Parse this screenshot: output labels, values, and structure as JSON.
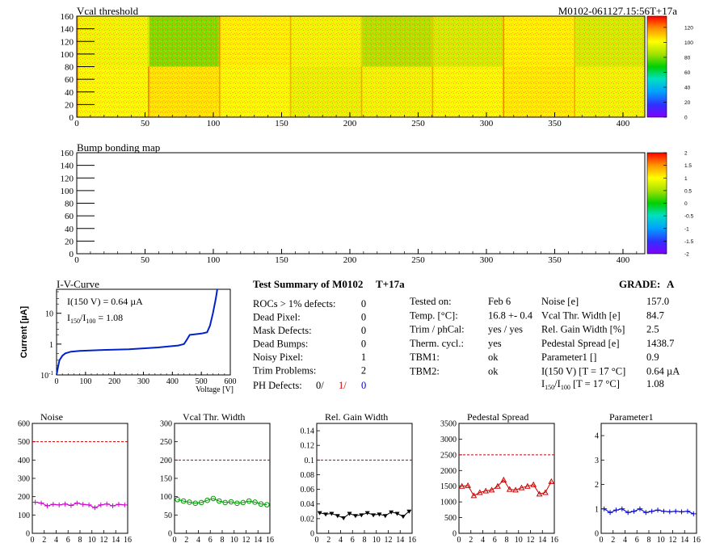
{
  "header": {
    "vcal_title": "Vcal threshold",
    "module_label": "M0102-061127.15:56T+17a",
    "bump_title": "Bump bonding map"
  },
  "heatmaps": [
    {
      "id": "vcal",
      "type": "heatmap",
      "x_ticks": [
        "0",
        "50",
        "100",
        "150",
        "200",
        "250",
        "300",
        "350",
        "400"
      ],
      "y_ticks": [
        "0",
        "20",
        "40",
        "60",
        "80",
        "100",
        "120",
        "140",
        "160"
      ],
      "xlim": [
        0,
        416
      ],
      "ylim": [
        0,
        160
      ],
      "color_scale_ticks": [
        "0",
        "20",
        "40",
        "60",
        "80",
        "100",
        "120"
      ],
      "zlim": [
        0,
        135
      ],
      "roc_mean_values_top": [
        98,
        80,
        103,
        98,
        86,
        92,
        103,
        92
      ],
      "roc_mean_values_bottom": [
        100,
        105,
        100,
        96,
        98,
        100,
        104,
        98
      ]
    },
    {
      "id": "bump",
      "type": "heatmap",
      "x_ticks": [
        "0",
        "50",
        "100",
        "150",
        "200",
        "250",
        "300",
        "350",
        "400"
      ],
      "y_ticks": [
        "0",
        "20",
        "40",
        "60",
        "80",
        "100",
        "120",
        "140",
        "160"
      ],
      "xlim": [
        0,
        416
      ],
      "ylim": [
        0,
        160
      ],
      "color_scale_ticks": [
        "-2",
        "-1.5",
        "-1",
        "-0.5",
        "0",
        "0.5",
        "1",
        "1.5",
        "2"
      ],
      "zlim": [
        -2,
        2
      ]
    }
  ],
  "iv_curve": {
    "title": "I-V-Curve",
    "ylabel": "Current [µA]",
    "xlabel": "Voltage [V]",
    "annotation_1": "I(150 V) = 0.64 µA",
    "annotation_2_pre": "I",
    "annotation_2_sub1": "150",
    "annotation_2_mid": "/I",
    "annotation_2_sub2": "100",
    "annotation_2_post": " =  1.08",
    "x_ticks": [
      "0",
      "100",
      "200",
      "300",
      "400",
      "500",
      "600"
    ],
    "y_ticks": [
      "10",
      "1",
      "10"
    ],
    "y_tick_exp": "-1",
    "xlim": [
      0,
      600
    ],
    "ylim_log": [
      0.1,
      60
    ],
    "chart_data": {
      "type": "line",
      "x": [
        0,
        5,
        10,
        20,
        30,
        50,
        80,
        150,
        250,
        350,
        420,
        440,
        450,
        460,
        480,
        500,
        520,
        530,
        540,
        550,
        555
      ],
      "y": [
        0.1,
        0.18,
        0.3,
        0.42,
        0.5,
        0.57,
        0.6,
        0.64,
        0.68,
        0.78,
        0.9,
        1.0,
        1.4,
        2.0,
        2.1,
        2.2,
        2.4,
        4.0,
        10.0,
        30.0,
        60.0
      ]
    }
  },
  "summary": {
    "title_left": "Test Summary of M0102",
    "title_right": "T+17a",
    "grade_label": "GRADE:",
    "grade_value": "A",
    "col1": [
      {
        "label": "ROCs > 1% defects:",
        "value": "0"
      },
      {
        "label": "Dead Pixel:",
        "value": "0"
      },
      {
        "label": "Mask Defects:",
        "value": "0"
      },
      {
        "label": "Dead Bumps:",
        "value": "0"
      },
      {
        "label": "Noisy Pixel:",
        "value": "1"
      },
      {
        "label": "Trim Problems:",
        "value": "2"
      }
    ],
    "ph_defects": {
      "label": "PH Defects:",
      "v1": "0/",
      "v2": "1/",
      "v3": "0"
    },
    "col2": [
      {
        "label": "Tested on:",
        "value": "Feb 6"
      },
      {
        "label": "Temp. [°C]:",
        "value": "16.8 +- 0.4"
      },
      {
        "label": "Trim / phCal:",
        "value": "yes / yes"
      },
      {
        "label": "Therm. cycl.:",
        "value": "yes"
      },
      {
        "label": "TBM1:",
        "value": "ok"
      },
      {
        "label": "TBM2:",
        "value": "ok"
      }
    ],
    "col3": [
      {
        "label": "Noise [e]",
        "value": "157.0"
      },
      {
        "label": "Vcal Thr. Width [e]",
        "value": "84.7"
      },
      {
        "label": "Rel. Gain Width [%]",
        "value": "2.5"
      },
      {
        "label": "Pedestal Spread [e]",
        "value": "1438.7"
      },
      {
        "label": "Parameter1 []",
        "value": "0.9"
      },
      {
        "label": "I(150 V) [T = 17 °C]",
        "value": "0.64 µA"
      }
    ],
    "ratio_row": {
      "pre": "I",
      "sub1": "150",
      "mid": "/I",
      "sub2": "100",
      "post": "  [T = 17 °C]",
      "value": "1.08"
    }
  },
  "chart_data": [
    {
      "type": "line",
      "title": "Noise",
      "color": "#cc00cc",
      "marker": "plus",
      "x": [
        0,
        1,
        2,
        3,
        4,
        5,
        6,
        7,
        8,
        9,
        10,
        11,
        12,
        13,
        14,
        15
      ],
      "values": [
        170,
        165,
        150,
        158,
        155,
        160,
        152,
        165,
        158,
        155,
        140,
        155,
        160,
        150,
        158,
        155
      ],
      "ylim": [
        0,
        600
      ],
      "limit": 500,
      "y_ticks": [
        "0",
        "100",
        "200",
        "300",
        "400",
        "500",
        "600"
      ],
      "x_ticks": [
        "0",
        "2",
        "4",
        "6",
        "8",
        "10",
        "12",
        "14",
        "16"
      ]
    },
    {
      "type": "line",
      "title": "Vcal Thr. Width",
      "color": "#009900",
      "marker": "circle",
      "x": [
        0,
        1,
        2,
        3,
        4,
        5,
        6,
        7,
        8,
        9,
        10,
        11,
        12,
        13,
        14,
        15
      ],
      "values": [
        92,
        88,
        85,
        82,
        84,
        90,
        95,
        88,
        84,
        86,
        82,
        84,
        88,
        85,
        80,
        78
      ],
      "ylim": [
        0,
        300
      ],
      "limit": 200,
      "y_ticks": [
        "0",
        "50",
        "100",
        "150",
        "200",
        "250",
        "300"
      ],
      "x_ticks": [
        "0",
        "2",
        "4",
        "6",
        "8",
        "10",
        "12",
        "14",
        "16"
      ]
    },
    {
      "type": "line",
      "title": "Rel. Gain Width",
      "color": "#000000",
      "marker": "triangle",
      "x": [
        0,
        1,
        2,
        3,
        4,
        5,
        6,
        7,
        8,
        9,
        10,
        11,
        12,
        13,
        14,
        15
      ],
      "values": [
        0.028,
        0.026,
        0.027,
        0.024,
        0.021,
        0.027,
        0.024,
        0.025,
        0.028,
        0.025,
        0.026,
        0.024,
        0.029,
        0.027,
        0.023,
        0.03
      ],
      "ylim": [
        0,
        0.15
      ],
      "limit": 0.1,
      "y_ticks": [
        "0",
        "0.02",
        "0.04",
        "0.06",
        "0.08",
        "0.1",
        "0.12",
        "0.14"
      ],
      "x_ticks": [
        "0",
        "2",
        "4",
        "6",
        "8",
        "10",
        "12",
        "14",
        "16"
      ]
    },
    {
      "type": "line",
      "title": "Pedestal Spread",
      "color": "#cc0000",
      "marker": "triangle-open",
      "x": [
        0,
        1,
        2,
        3,
        4,
        5,
        6,
        7,
        8,
        9,
        10,
        11,
        12,
        13,
        14,
        15
      ],
      "values": [
        1500,
        1520,
        1200,
        1300,
        1350,
        1380,
        1500,
        1700,
        1400,
        1380,
        1450,
        1500,
        1550,
        1250,
        1300,
        1650
      ],
      "ylim": [
        0,
        3500
      ],
      "limit": 2500,
      "y_ticks": [
        "0",
        "500",
        "1000",
        "1500",
        "2000",
        "2500",
        "3000",
        "3500"
      ],
      "x_ticks": [
        "0",
        "2",
        "4",
        "6",
        "8",
        "10",
        "12",
        "14",
        "16"
      ]
    },
    {
      "type": "line",
      "title": "Parameter1",
      "color": "#0000cc",
      "marker": "plus",
      "x": [
        0,
        1,
        2,
        3,
        4,
        5,
        6,
        7,
        8,
        9,
        10,
        11,
        12,
        13,
        14,
        15
      ],
      "values": [
        1.0,
        0.85,
        0.95,
        1.0,
        0.85,
        0.9,
        1.0,
        0.85,
        0.9,
        0.95,
        0.9,
        0.88,
        0.9,
        0.88,
        0.9,
        0.8
      ],
      "ylim": [
        0,
        4.5
      ],
      "y_ticks": [
        "0",
        "1",
        "2",
        "3",
        "4"
      ],
      "x_ticks": [
        "0",
        "2",
        "4",
        "6",
        "8",
        "10",
        "12",
        "14",
        "16"
      ]
    }
  ]
}
